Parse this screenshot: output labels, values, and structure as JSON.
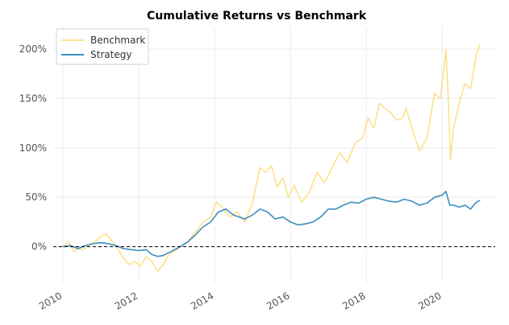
{
  "chart_data": {
    "type": "line",
    "title": "Cumulative Returns vs Benchmark",
    "xlabel": "",
    "ylabel": "",
    "xlim": [
      2009.75,
      2021.4
    ],
    "ylim": [
      -37,
      222
    ],
    "x_ticks": [
      2010,
      2012,
      2014,
      2016,
      2018,
      2020
    ],
    "x_tick_labels": [
      "2010",
      "2012",
      "2014",
      "2016",
      "2018",
      "2020"
    ],
    "y_ticks": [
      0,
      50,
      100,
      150,
      200
    ],
    "y_tick_labels": [
      "0%",
      "50%",
      "100%",
      "150%",
      "200%"
    ],
    "grid": true,
    "legend_position": "top-left",
    "zero_line": true,
    "colors": {
      "Benchmark": "#fde08b",
      "Strategy": "#3a8fc1",
      "zero_line": "#000000",
      "grid": "#ebebeb"
    },
    "series": [
      {
        "name": "Benchmark",
        "x": [
          2010.0,
          2010.15,
          2010.3,
          2010.4,
          2010.55,
          2010.7,
          2010.85,
          2011.0,
          2011.15,
          2011.3,
          2011.45,
          2011.6,
          2011.75,
          2011.9,
          2012.05,
          2012.2,
          2012.35,
          2012.5,
          2012.65,
          2012.8,
          2012.95,
          2013.1,
          2013.3,
          2013.5,
          2013.7,
          2013.9,
          2014.05,
          2014.2,
          2014.4,
          2014.6,
          2014.8,
          2015.0,
          2015.2,
          2015.35,
          2015.5,
          2015.65,
          2015.8,
          2015.95,
          2016.1,
          2016.3,
          2016.5,
          2016.7,
          2016.9,
          2017.1,
          2017.3,
          2017.5,
          2017.7,
          2017.9,
          2018.05,
          2018.2,
          2018.35,
          2018.5,
          2018.65,
          2018.8,
          2018.95,
          2019.05,
          2019.2,
          2019.4,
          2019.6,
          2019.8,
          2019.95,
          2020.05,
          2020.1,
          2020.15,
          2020.22,
          2020.3,
          2020.45,
          2020.6,
          2020.75,
          2020.9,
          2021.0
        ],
        "values": [
          0,
          5,
          -5,
          -2,
          -3,
          2,
          5,
          10,
          13,
          5,
          -2,
          -12,
          -18,
          -15,
          -20,
          -10,
          -15,
          -25,
          -18,
          -8,
          -5,
          0,
          5,
          15,
          25,
          30,
          45,
          40,
          30,
          35,
          25,
          45,
          80,
          75,
          82,
          60,
          70,
          50,
          62,
          45,
          55,
          75,
          65,
          80,
          95,
          85,
          105,
          110,
          130,
          120,
          145,
          140,
          135,
          128,
          130,
          140,
          120,
          97,
          110,
          155,
          150,
          180,
          200,
          160,
          88,
          120,
          145,
          165,
          160,
          195,
          205
        ]
      },
      {
        "name": "Strategy",
        "x": [
          2010.0,
          2010.2,
          2010.4,
          2010.6,
          2010.8,
          2011.0,
          2011.2,
          2011.4,
          2011.6,
          2011.8,
          2012.0,
          2012.2,
          2012.35,
          2012.5,
          2012.65,
          2012.8,
          2012.95,
          2013.1,
          2013.3,
          2013.5,
          2013.7,
          2013.9,
          2014.1,
          2014.3,
          2014.5,
          2014.65,
          2014.8,
          2015.0,
          2015.2,
          2015.4,
          2015.6,
          2015.8,
          2016.0,
          2016.2,
          2016.4,
          2016.6,
          2016.8,
          2017.0,
          2017.2,
          2017.4,
          2017.6,
          2017.8,
          2018.0,
          2018.2,
          2018.4,
          2018.6,
          2018.8,
          2019.0,
          2019.2,
          2019.4,
          2019.6,
          2019.8,
          2020.0,
          2020.1,
          2020.2,
          2020.3,
          2020.45,
          2020.6,
          2020.75,
          2020.9,
          2021.0
        ],
        "values": [
          0,
          1,
          -2,
          1,
          3,
          4,
          3,
          1,
          -2,
          -3,
          -4,
          -3,
          -8,
          -10,
          -9,
          -6,
          -3,
          0,
          5,
          12,
          20,
          25,
          35,
          38,
          32,
          30,
          28,
          32,
          38,
          35,
          28,
          30,
          25,
          22,
          23,
          25,
          30,
          38,
          38,
          42,
          45,
          44,
          48,
          50,
          48,
          46,
          45,
          48,
          46,
          42,
          44,
          50,
          52,
          56,
          42,
          42,
          40,
          42,
          38,
          45,
          47
        ]
      }
    ]
  }
}
